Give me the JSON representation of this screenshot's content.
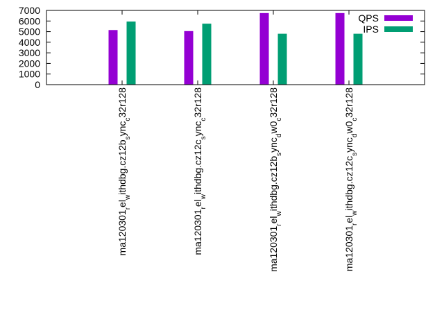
{
  "chart_data": {
    "type": "bar",
    "title": "",
    "xlabel": "",
    "ylabel": "",
    "ylim": [
      0,
      7000
    ],
    "yticks": [
      0,
      1000,
      2000,
      3000,
      4000,
      5000,
      6000,
      7000
    ],
    "legend_position": "top-right",
    "grid": false,
    "categories": [
      {
        "base": "ma120301",
        "parts": [
          [
            "r",
            "sub"
          ],
          [
            "el",
            ""
          ],
          [
            "w",
            "sub"
          ],
          [
            "ithdbg.cz12b",
            ""
          ],
          [
            "s",
            "sub"
          ],
          [
            "ync",
            ""
          ],
          [
            "c",
            "sub"
          ],
          [
            "32r128",
            ""
          ]
        ]
      },
      {
        "base": "ma120301",
        "parts": [
          [
            "r",
            "sub"
          ],
          [
            "el",
            ""
          ],
          [
            "w",
            "sub"
          ],
          [
            "ithdbg.cz12c",
            ""
          ],
          [
            "s",
            "sub"
          ],
          [
            "ync",
            ""
          ],
          [
            "c",
            "sub"
          ],
          [
            "32r128",
            ""
          ]
        ]
      },
      {
        "base": "ma120301",
        "parts": [
          [
            "r",
            "sub"
          ],
          [
            "el",
            ""
          ],
          [
            "w",
            "sub"
          ],
          [
            "ithdbg.cz12b",
            ""
          ],
          [
            "s",
            "sub"
          ],
          [
            "ync",
            ""
          ],
          [
            "d",
            "sub"
          ],
          [
            "w0",
            ""
          ],
          [
            "c",
            "sub"
          ],
          [
            "32r128",
            ""
          ]
        ]
      },
      {
        "base": "ma120301",
        "parts": [
          [
            "r",
            "sub"
          ],
          [
            "el",
            ""
          ],
          [
            "w",
            "sub"
          ],
          [
            "ithdbg.cz12c",
            ""
          ],
          [
            "s",
            "sub"
          ],
          [
            "ync",
            ""
          ],
          [
            "d",
            "sub"
          ],
          [
            "w0",
            ""
          ],
          [
            "c",
            "sub"
          ],
          [
            "32r128",
            ""
          ]
        ]
      }
    ],
    "series": [
      {
        "name": "QPS",
        "color": "#9400d3",
        "values": [
          5150,
          5050,
          6750,
          6750
        ]
      },
      {
        "name": "IPS",
        "color": "#009e73",
        "values": [
          5950,
          5750,
          4800,
          4800
        ]
      }
    ]
  }
}
